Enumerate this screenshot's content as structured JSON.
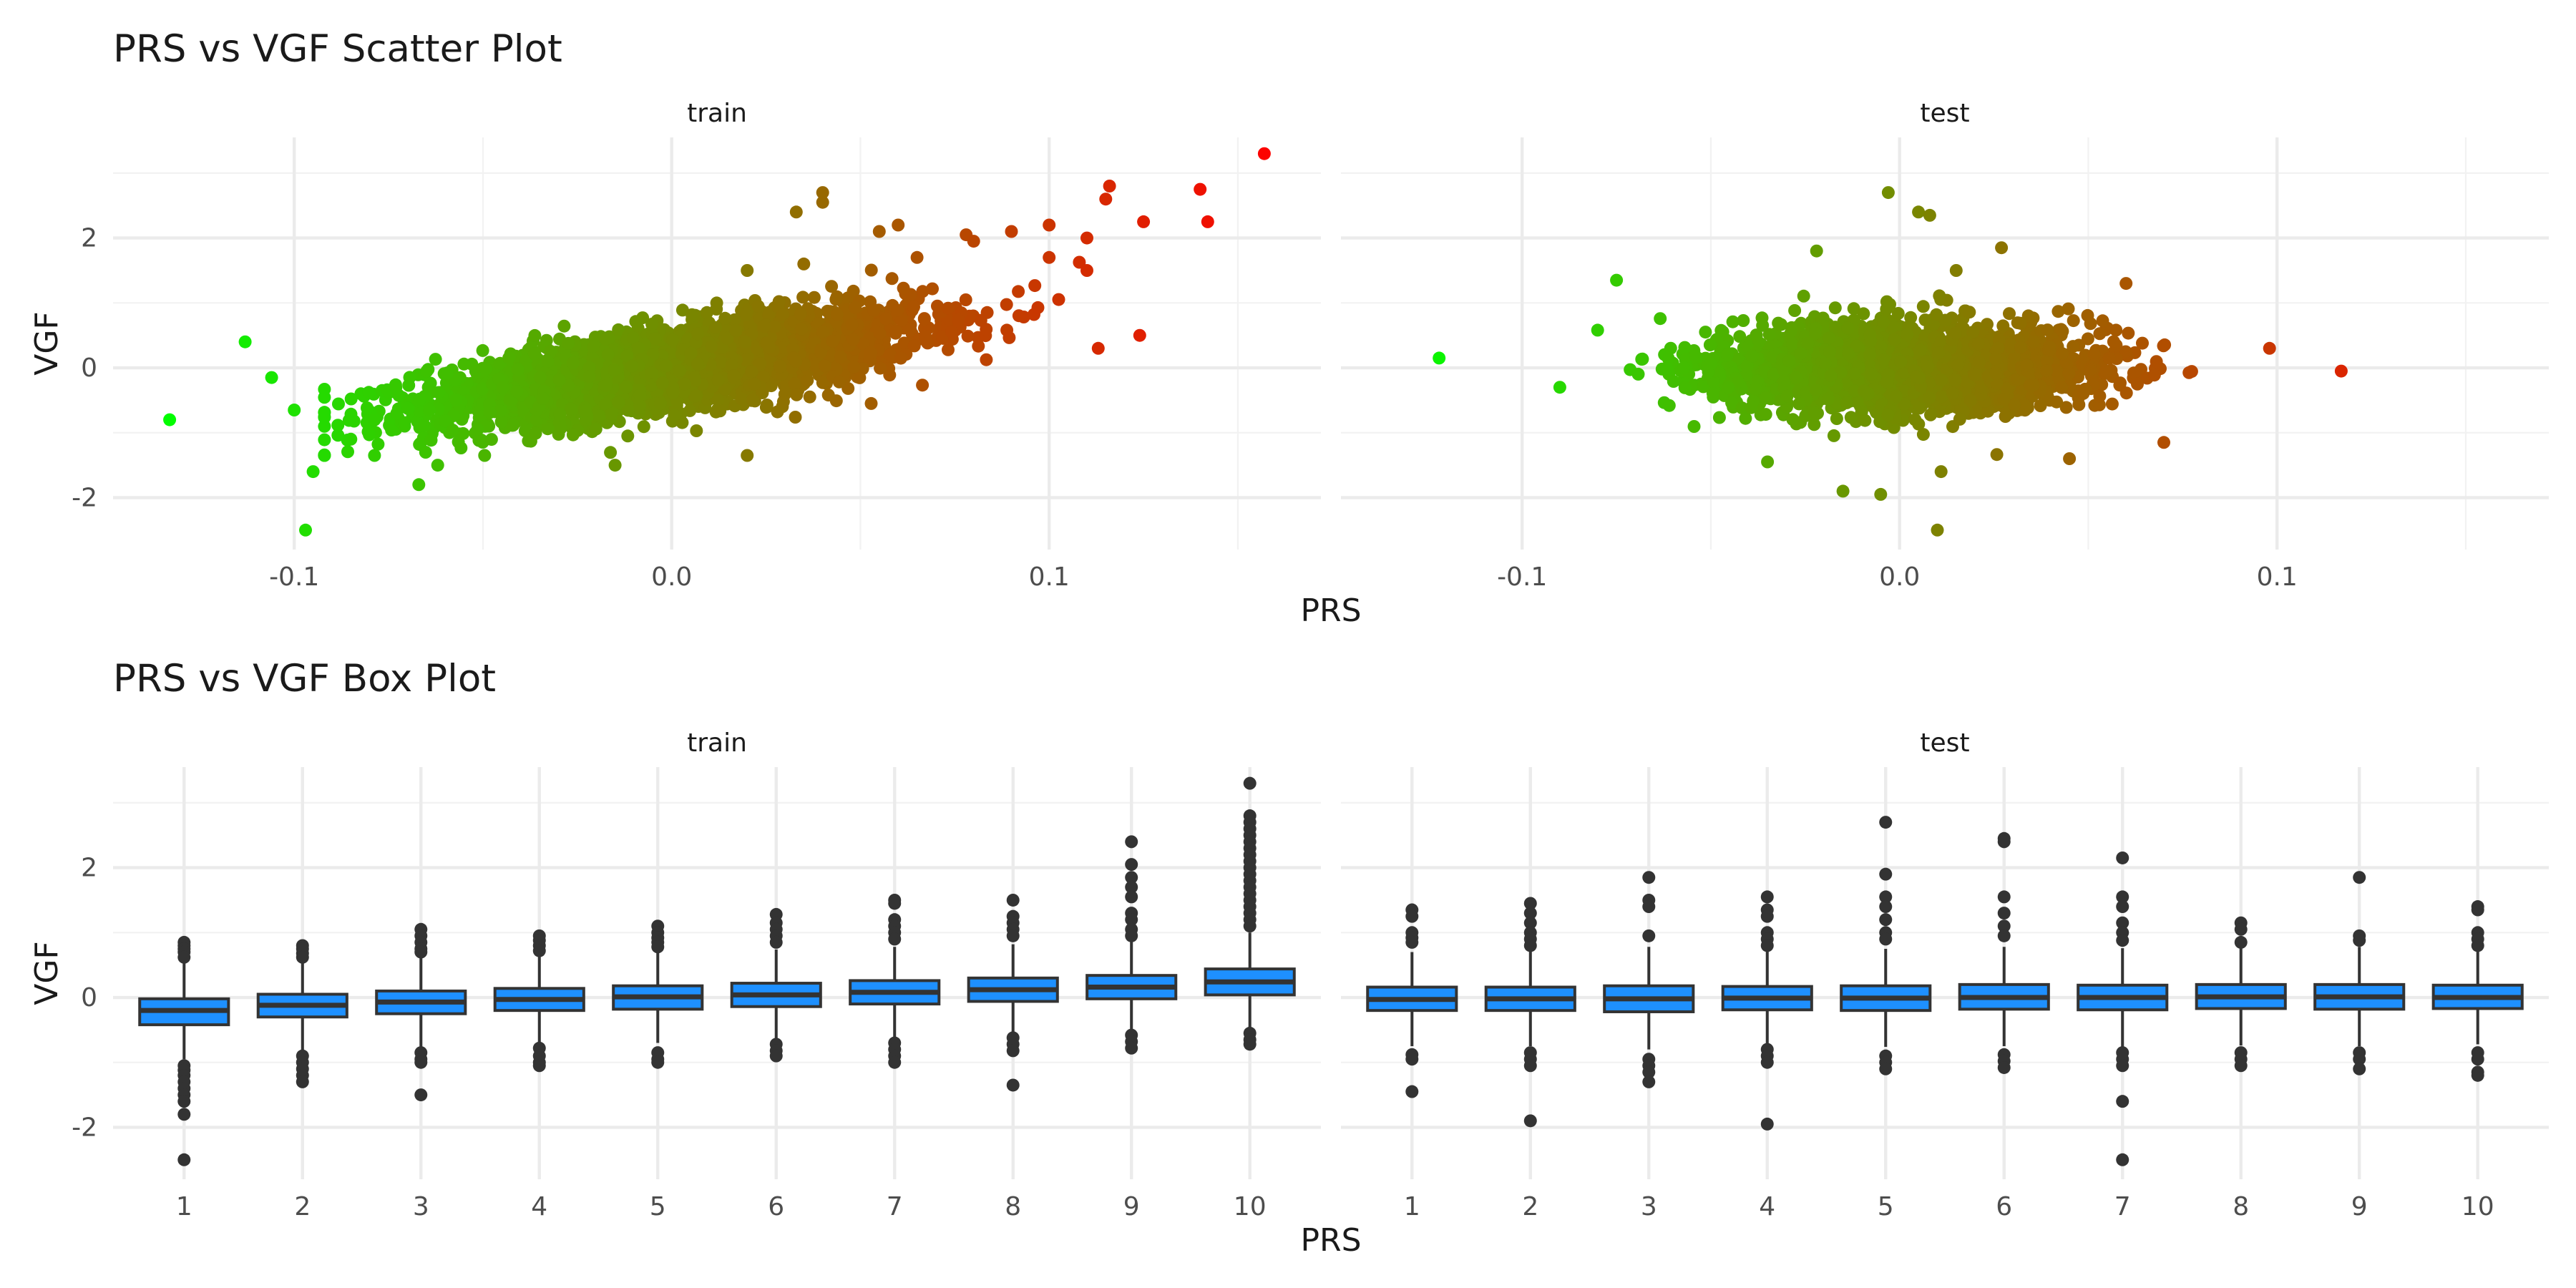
{
  "chart_data": [
    {
      "type": "scatter",
      "title": "PRS vs VGF Scatter Plot",
      "xlabel": "PRS",
      "ylabel": "VGF",
      "xlim": [
        -0.148,
        0.172
      ],
      "ylim": [
        -2.8,
        3.55
      ],
      "xticks": [
        "-0.1",
        "0.0",
        "0.1"
      ],
      "yticks": [
        "-2",
        "0",
        "2"
      ],
      "grid": true,
      "color_gradient": {
        "low": "#00ff00",
        "high": "#ff0000",
        "domain": [
          -0.135,
          0.16
        ]
      },
      "facets": [
        {
          "label": "train",
          "trend": {
            "slope": 9.0,
            "intercept": 0.0,
            "x_sd": 0.032,
            "y_sd": 0.3,
            "n": 3400
          },
          "points": [
            [
              -0.133,
              -0.8
            ],
            [
              -0.113,
              0.4
            ],
            [
              -0.106,
              -0.15
            ],
            [
              -0.1,
              -0.65
            ],
            [
              -0.095,
              -1.6
            ],
            [
              -0.097,
              -2.5
            ],
            [
              -0.085,
              -1.1
            ],
            [
              -0.067,
              -1.8
            ],
            [
              -0.062,
              -1.5
            ],
            [
              -0.015,
              -1.5
            ],
            [
              0.02,
              -1.35
            ],
            [
              0.02,
              1.5
            ],
            [
              0.035,
              1.6
            ],
            [
              0.033,
              2.4
            ],
            [
              0.04,
              2.55
            ],
            [
              0.04,
              2.7
            ],
            [
              0.055,
              2.1
            ],
            [
              0.06,
              2.2
            ],
            [
              0.065,
              1.7
            ],
            [
              0.078,
              2.05
            ],
            [
              0.08,
              1.95
            ],
            [
              0.09,
              2.1
            ],
            [
              0.1,
              2.2
            ],
            [
              0.1,
              1.7
            ],
            [
              0.11,
              2.0
            ],
            [
              0.11,
              1.5
            ],
            [
              0.113,
              0.3
            ],
            [
              0.115,
              2.6
            ],
            [
              0.116,
              2.8
            ],
            [
              0.125,
              2.25
            ],
            [
              0.124,
              0.5
            ],
            [
              0.14,
              2.75
            ],
            [
              0.142,
              2.25
            ],
            [
              0.157,
              3.3
            ]
          ]
        },
        {
          "label": "test",
          "trend": {
            "slope": 0.0,
            "intercept": 0.0,
            "x_sd": 0.024,
            "y_sd": 0.32,
            "n": 3000
          },
          "points": [
            [
              -0.122,
              0.15
            ],
            [
              -0.075,
              1.35
            ],
            [
              -0.09,
              -0.3
            ],
            [
              -0.035,
              -1.45
            ],
            [
              -0.022,
              1.8
            ],
            [
              -0.015,
              -1.9
            ],
            [
              -0.003,
              2.7
            ],
            [
              0.005,
              2.4
            ],
            [
              0.008,
              2.35
            ],
            [
              0.01,
              -2.5
            ],
            [
              0.011,
              -1.6
            ],
            [
              0.015,
              1.5
            ],
            [
              0.027,
              1.85
            ],
            [
              0.045,
              -1.4
            ],
            [
              0.06,
              1.3
            ],
            [
              0.098,
              0.3
            ],
            [
              0.117,
              -0.05
            ],
            [
              -0.005,
              -1.95
            ],
            [
              0.07,
              -1.15
            ]
          ]
        }
      ]
    },
    {
      "type": "box",
      "title": "PRS vs VGF Box Plot",
      "xlabel": "PRS",
      "ylabel": "VGF",
      "categories": [
        "1",
        "2",
        "3",
        "4",
        "5",
        "6",
        "7",
        "8",
        "9",
        "10"
      ],
      "ylim": [
        -2.8,
        3.55
      ],
      "yticks": [
        "-2",
        "0",
        "2"
      ],
      "grid": true,
      "box_fill": "#1e90ff",
      "box_stroke": "#333333",
      "facets": [
        {
          "label": "train",
          "boxes": [
            {
              "q1": -0.42,
              "median": -0.2,
              "q3": -0.02,
              "lo": -0.95,
              "hi": 0.55,
              "outliers": [
                0.85,
                0.8,
                0.75,
                0.7,
                0.62,
                -1.05,
                -1.12,
                -1.2,
                -1.3,
                -1.4,
                -1.5,
                -1.6,
                -1.8,
                -2.5
              ]
            },
            {
              "q1": -0.3,
              "median": -0.12,
              "q3": 0.05,
              "lo": -0.85,
              "hi": 0.58,
              "outliers": [
                0.8,
                0.75,
                0.68,
                0.62,
                -0.9,
                -1.0,
                -1.1,
                -1.2,
                -1.3
              ]
            },
            {
              "q1": -0.25,
              "median": -0.07,
              "q3": 0.1,
              "lo": -0.78,
              "hi": 0.62,
              "outliers": [
                1.05,
                0.95,
                0.85,
                0.75,
                0.7,
                -0.85,
                -0.95,
                -1.0,
                -1.5
              ]
            },
            {
              "q1": -0.2,
              "median": -0.03,
              "q3": 0.14,
              "lo": -0.72,
              "hi": 0.66,
              "outliers": [
                0.95,
                0.88,
                0.8,
                0.72,
                -0.78,
                -0.9,
                -1.0,
                -1.05
              ]
            },
            {
              "q1": -0.18,
              "median": 0.01,
              "q3": 0.18,
              "lo": -0.7,
              "hi": 0.7,
              "outliers": [
                1.1,
                1.0,
                0.92,
                0.85,
                0.78,
                -0.85,
                -0.95,
                -1.0
              ]
            },
            {
              "q1": -0.14,
              "median": 0.04,
              "q3": 0.22,
              "lo": -0.66,
              "hi": 0.74,
              "outliers": [
                1.28,
                1.15,
                1.05,
                0.95,
                0.85,
                -0.72,
                -0.82,
                -0.9
              ]
            },
            {
              "q1": -0.1,
              "median": 0.08,
              "q3": 0.26,
              "lo": -0.62,
              "hi": 0.78,
              "outliers": [
                1.5,
                1.45,
                1.2,
                1.1,
                1.0,
                0.9,
                -0.7,
                -0.8,
                -0.9,
                -1.0
              ]
            },
            {
              "q1": -0.06,
              "median": 0.12,
              "q3": 0.3,
              "lo": -0.58,
              "hi": 0.82,
              "outliers": [
                1.5,
                1.25,
                1.15,
                1.05,
                0.95,
                -0.62,
                -0.72,
                -0.82,
                -1.35
              ]
            },
            {
              "q1": -0.02,
              "median": 0.16,
              "q3": 0.34,
              "lo": -0.54,
              "hi": 0.86,
              "outliers": [
                2.4,
                2.05,
                1.85,
                1.7,
                1.55,
                1.3,
                1.2,
                1.05,
                0.95,
                -0.58,
                -0.68,
                -0.78
              ]
            },
            {
              "q1": 0.04,
              "median": 0.24,
              "q3": 0.44,
              "lo": -0.48,
              "hi": 1.0,
              "outliers": [
                3.3,
                2.8,
                2.7,
                2.6,
                2.5,
                2.4,
                2.3,
                2.2,
                2.1,
                2.0,
                1.9,
                1.8,
                1.7,
                1.6,
                1.5,
                1.4,
                1.3,
                1.2,
                1.1,
                -0.55,
                -0.65,
                -0.72
              ]
            }
          ]
        },
        {
          "label": "test",
          "boxes": [
            {
              "q1": -0.2,
              "median": -0.03,
              "q3": 0.16,
              "lo": -0.75,
              "hi": 0.7,
              "outliers": [
                1.35,
                1.25,
                1.0,
                0.92,
                0.85,
                -0.88,
                -0.95,
                -1.45
              ]
            },
            {
              "q1": -0.2,
              "median": -0.02,
              "q3": 0.16,
              "lo": -0.75,
              "hi": 0.72,
              "outliers": [
                1.45,
                1.3,
                1.15,
                1.0,
                0.9,
                0.8,
                -0.85,
                -0.95,
                -1.05,
                -1.9
              ]
            },
            {
              "q1": -0.22,
              "median": -0.02,
              "q3": 0.18,
              "lo": -0.8,
              "hi": 0.78,
              "outliers": [
                1.85,
                1.5,
                1.4,
                0.95,
                -0.95,
                -1.05,
                -1.15,
                -1.3
              ]
            },
            {
              "q1": -0.19,
              "median": -0.01,
              "q3": 0.17,
              "lo": -0.74,
              "hi": 0.72,
              "outliers": [
                1.55,
                1.35,
                1.25,
                1.0,
                0.9,
                0.8,
                -0.8,
                -0.9,
                -1.0,
                -1.95
              ]
            },
            {
              "q1": -0.2,
              "median": -0.01,
              "q3": 0.18,
              "lo": -0.76,
              "hi": 0.75,
              "outliers": [
                2.7,
                1.9,
                1.55,
                1.4,
                1.2,
                1.0,
                0.9,
                -0.9,
                -1.0,
                -1.1
              ]
            },
            {
              "q1": -0.18,
              "median": 0.0,
              "q3": 0.2,
              "lo": -0.75,
              "hi": 0.78,
              "outliers": [
                2.45,
                2.4,
                1.55,
                1.3,
                1.1,
                0.95,
                -0.88,
                -0.98,
                -1.08
              ]
            },
            {
              "q1": -0.19,
              "median": 0.0,
              "q3": 0.19,
              "lo": -0.76,
              "hi": 0.76,
              "outliers": [
                2.15,
                1.55,
                1.4,
                1.15,
                1.0,
                0.88,
                -0.85,
                -0.95,
                -1.05,
                -1.6,
                -2.5
              ]
            },
            {
              "q1": -0.17,
              "median": 0.01,
              "q3": 0.2,
              "lo": -0.74,
              "hi": 0.78,
              "outliers": [
                1.15,
                1.05,
                0.85,
                -0.85,
                -0.95,
                -1.05
              ]
            },
            {
              "q1": -0.18,
              "median": 0.01,
              "q3": 0.2,
              "lo": -0.75,
              "hi": 0.78,
              "outliers": [
                1.85,
                0.95,
                0.88,
                -0.85,
                -0.95,
                -1.1
              ]
            },
            {
              "q1": -0.17,
              "median": 0.0,
              "q3": 0.19,
              "lo": -0.72,
              "hi": 0.74,
              "outliers": [
                1.4,
                1.35,
                1.0,
                0.9,
                0.8,
                -0.85,
                -0.95,
                -1.15,
                -1.2
              ]
            }
          ]
        }
      ]
    }
  ]
}
